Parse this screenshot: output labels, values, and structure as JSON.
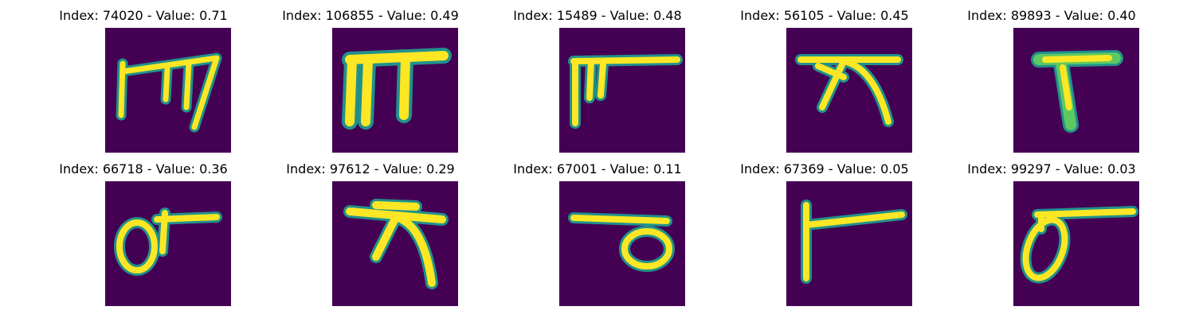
{
  "panels": [
    {
      "index": "74020",
      "value": "0.71",
      "title": "Index: 74020 - Value: 0.71"
    },
    {
      "index": "106855",
      "value": "0.49",
      "title": "Index: 106855 - Value: 0.49"
    },
    {
      "index": "15489",
      "value": "0.48",
      "title": "Index: 15489 - Value: 0.48"
    },
    {
      "index": "56105",
      "value": "0.45",
      "title": "Index: 56105 - Value: 0.45"
    },
    {
      "index": "89893",
      "value": "0.40",
      "title": "Index: 89893 - Value: 0.40"
    },
    {
      "index": "66718",
      "value": "0.36",
      "title": "Index: 66718 - Value: 0.36"
    },
    {
      "index": "97612",
      "value": "0.29",
      "title": "Index: 97612 - Value: 0.29"
    },
    {
      "index": "67001",
      "value": "0.11",
      "title": "Index: 67001 - Value: 0.11"
    },
    {
      "index": "67369",
      "value": "0.05",
      "title": "Index: 67369 - Value: 0.05"
    },
    {
      "index": "99297",
      "value": "0.03",
      "title": "Index: 99297 - Value: 0.03"
    }
  ],
  "colors": {
    "background": "#440154",
    "stroke_core": "#fde725",
    "stroke_edge": "#21918c",
    "stroke_mid": "#5ec962"
  }
}
